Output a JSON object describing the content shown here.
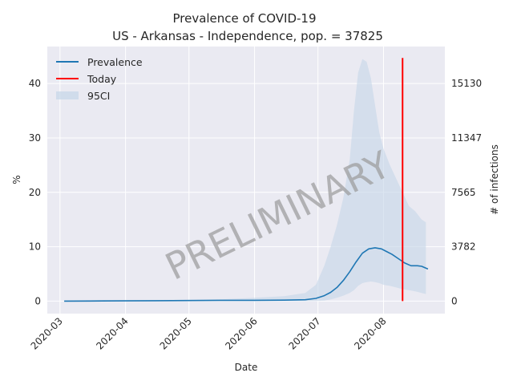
{
  "chart_data": {
    "type": "line",
    "title": "Prevalence of COVID-19",
    "subtitle": "US - Arkansas - Independence, pop. = 37825",
    "xlabel": "Date",
    "ylabel": "%",
    "y2label": "# of infections",
    "ylim": [
      -2.3,
      46.8
    ],
    "yticks": [
      0,
      10,
      20,
      30,
      40
    ],
    "y2ticks": [
      0,
      3782,
      7565,
      11347,
      15130
    ],
    "xlim": [
      "2020-02-24",
      "2020-08-30"
    ],
    "xticks": [
      "2020-03",
      "2020-04",
      "2020-05",
      "2020-06",
      "2020-07",
      "2020-08"
    ],
    "grid": true,
    "legend_position": "top-left",
    "watermark": "PRELIMINARY",
    "legend": [
      {
        "label": "Prevalence",
        "color": "#1f77b4",
        "kind": "line"
      },
      {
        "label": "Today",
        "color": "#ff0000",
        "kind": "line"
      },
      {
        "label": "95CI",
        "color": "#c5d5e8",
        "kind": "patch"
      }
    ],
    "today": {
      "date": "2020-08-10",
      "y_range": [
        0,
        44.7
      ]
    },
    "series": [
      {
        "name": "Prevalence",
        "x": [
          "2020-03-03",
          "2020-03-15",
          "2020-04-01",
          "2020-04-15",
          "2020-05-01",
          "2020-05-15",
          "2020-06-01",
          "2020-06-15",
          "2020-06-25",
          "2020-06-30",
          "2020-07-04",
          "2020-07-07",
          "2020-07-10",
          "2020-07-13",
          "2020-07-16",
          "2020-07-19",
          "2020-07-22",
          "2020-07-25",
          "2020-07-28",
          "2020-07-31",
          "2020-08-02",
          "2020-08-05",
          "2020-08-08",
          "2020-08-11",
          "2020-08-14",
          "2020-08-17",
          "2020-08-19",
          "2020-08-22"
        ],
        "values": [
          0,
          0.02,
          0.05,
          0.08,
          0.1,
          0.15,
          0.15,
          0.18,
          0.25,
          0.5,
          1.0,
          1.6,
          2.5,
          3.8,
          5.4,
          7.2,
          8.8,
          9.6,
          9.8,
          9.6,
          9.2,
          8.6,
          7.8,
          7.0,
          6.5,
          6.5,
          6.4,
          5.9
        ]
      },
      {
        "name": "95CI",
        "x": [
          "2020-03-03",
          "2020-05-15",
          "2020-06-01",
          "2020-06-15",
          "2020-06-25",
          "2020-06-30",
          "2020-07-04",
          "2020-07-07",
          "2020-07-10",
          "2020-07-13",
          "2020-07-16",
          "2020-07-18",
          "2020-07-20",
          "2020-07-22",
          "2020-07-24",
          "2020-07-26",
          "2020-07-28",
          "2020-07-30",
          "2020-08-01",
          "2020-08-04",
          "2020-08-07",
          "2020-08-10",
          "2020-08-13",
          "2020-08-16",
          "2020-08-19",
          "2020-08-21"
        ],
        "upper": [
          0,
          0.3,
          0.6,
          0.9,
          1.5,
          3.0,
          6.5,
          10.0,
          14.0,
          19.0,
          26.0,
          35.0,
          42.0,
          44.5,
          44.0,
          41.0,
          36.0,
          31.0,
          28.0,
          25.0,
          22.5,
          20.0,
          17.5,
          16.5,
          15.0,
          14.5
        ],
        "lower": [
          0,
          0,
          0,
          0,
          0,
          0,
          0.1,
          0.3,
          0.6,
          1.0,
          1.5,
          2.0,
          2.8,
          3.3,
          3.5,
          3.6,
          3.5,
          3.3,
          3.0,
          2.8,
          2.5,
          2.2,
          2.0,
          1.8,
          1.5,
          1.3
        ]
      }
    ]
  }
}
